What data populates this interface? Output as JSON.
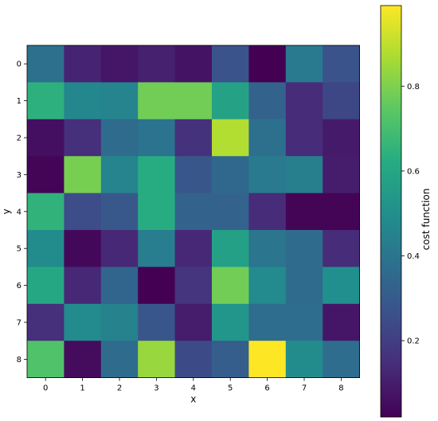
{
  "chart_data": {
    "type": "heatmap",
    "colormap": "viridis",
    "xlabel": "x",
    "ylabel": "y",
    "colorbar_label": "cost function",
    "x": [
      0,
      1,
      2,
      3,
      4,
      5,
      6,
      7,
      8
    ],
    "y": [
      0,
      1,
      2,
      3,
      4,
      5,
      6,
      7,
      8
    ],
    "x_tick_labels": [
      "0",
      "1",
      "2",
      "3",
      "4",
      "5",
      "6",
      "7",
      "8"
    ],
    "y_tick_labels": [
      "0",
      "1",
      "2",
      "3",
      "4",
      "5",
      "6",
      "7",
      "8"
    ],
    "colorbar_range": [
      0.02,
      0.99
    ],
    "colorbar_ticks": [
      0.2,
      0.4,
      0.6,
      0.8
    ],
    "colorbar_tick_labels": [
      "0.2",
      "0.4",
      "0.6",
      "0.8"
    ],
    "values": [
      [
        0.38,
        0.12,
        0.08,
        0.11,
        0.07,
        0.27,
        0.02,
        0.42,
        0.27
      ],
      [
        0.64,
        0.47,
        0.46,
        0.78,
        0.78,
        0.58,
        0.33,
        0.14,
        0.23
      ],
      [
        0.06,
        0.15,
        0.36,
        0.39,
        0.16,
        0.88,
        0.38,
        0.14,
        0.09
      ],
      [
        0.03,
        0.79,
        0.46,
        0.62,
        0.28,
        0.35,
        0.42,
        0.44,
        0.1
      ],
      [
        0.65,
        0.25,
        0.29,
        0.62,
        0.33,
        0.33,
        0.14,
        0.03,
        0.03
      ],
      [
        0.49,
        0.04,
        0.13,
        0.43,
        0.13,
        0.57,
        0.4,
        0.36,
        0.14
      ],
      [
        0.6,
        0.13,
        0.34,
        0.02,
        0.17,
        0.78,
        0.48,
        0.36,
        0.5
      ],
      [
        0.15,
        0.48,
        0.45,
        0.28,
        0.1,
        0.53,
        0.37,
        0.37,
        0.08
      ],
      [
        0.72,
        0.05,
        0.36,
        0.84,
        0.24,
        0.31,
        0.99,
        0.49,
        0.37
      ]
    ]
  }
}
